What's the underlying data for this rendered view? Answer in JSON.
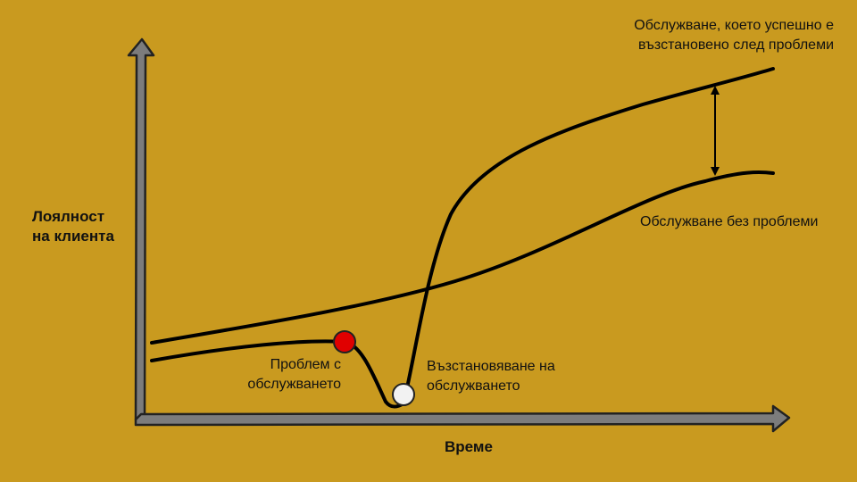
{
  "diagram": {
    "y_axis_label": {
      "line1": "Лоялност",
      "line2": "на клиента"
    },
    "x_axis_label": "Време",
    "recovered_label": {
      "line1": "Обслужване, което успешно е",
      "line2": "възстановено след проблеми"
    },
    "no_problem_label": "Обслужване без проблеми",
    "problem_label": {
      "line1": "Проблем с",
      "line2": "обслужването"
    },
    "recovery_label": {
      "line1": "Възстановяване на",
      "line2": "обслужването"
    }
  },
  "colors": {
    "background": "#c99a1f",
    "axis_fill": "#7c7c7c",
    "curve": "#000000",
    "problem_marker": "#e00000",
    "recovery_marker": "#f2f2f2"
  }
}
